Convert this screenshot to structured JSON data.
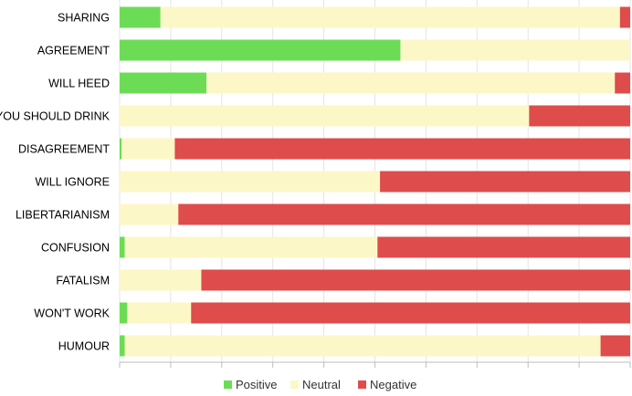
{
  "chart_data": {
    "type": "bar",
    "orientation": "horizontal",
    "stacked": true,
    "normalized": true,
    "grid": true,
    "legend_placement": "bottom",
    "xlim": [
      0,
      100
    ],
    "categories": [
      "SHARING",
      "AGREEMENT",
      "WILL HEED",
      "YOU SHOULD DRINK",
      "DISAGREEMENT",
      "WILL IGNORE",
      "LIBERTARIANISM",
      "CONFUSION",
      "FATALISM",
      "WON'T WORK",
      "HUMOUR"
    ],
    "series": [
      {
        "name": "Positive",
        "color": "#6cdc56",
        "values": [
          8,
          55,
          17,
          0,
          0.4,
          0,
          0,
          1,
          0,
          1.5,
          1
        ]
      },
      {
        "name": "Neutral",
        "color": "#fcf7c6",
        "values": [
          90,
          45,
          80,
          80.2,
          10.4,
          51,
          11.5,
          49.5,
          16,
          12.5,
          93.2
        ]
      },
      {
        "name": "Negative",
        "color": "#de4c4c",
        "values": [
          2,
          0,
          3,
          19.8,
          89.2,
          49,
          88.5,
          49.5,
          84,
          86,
          5.8
        ]
      }
    ]
  }
}
